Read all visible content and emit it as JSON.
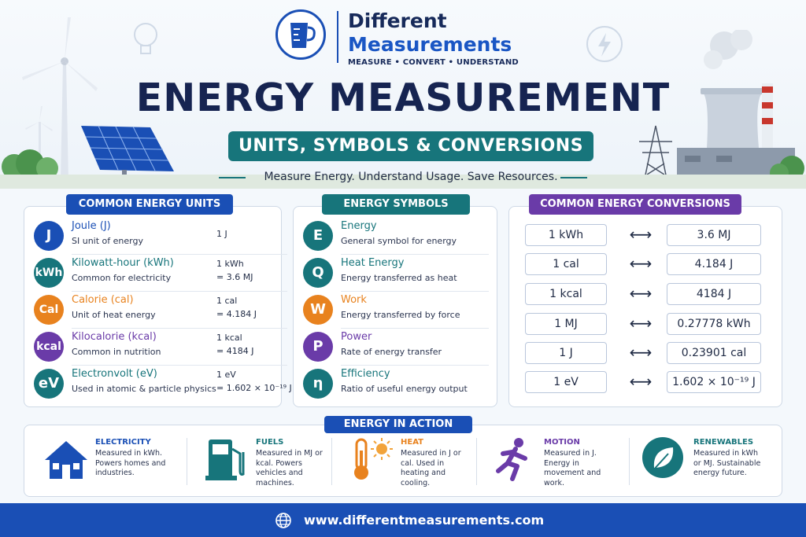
{
  "brand": {
    "line1": "Different",
    "line2": "Measurements",
    "tagline": "MEASURE • CONVERT • UNDERSTAND"
  },
  "header": {
    "title": "ENERGY MEASUREMENT",
    "subtitle": "UNITS, SYMBOLS & CONVERSIONS",
    "tagline": "Measure Energy. Understand Usage. Save Resources."
  },
  "units": {
    "title": "COMMON ENERGY UNITS",
    "items": [
      {
        "symbol": "J",
        "name": "Joule (J)",
        "desc": "SI unit of energy",
        "v1": "1 J",
        "v2": "",
        "color": "#1a4fb5"
      },
      {
        "symbol": "kWh",
        "name": "Kilowatt-hour (kWh)",
        "desc": "Common for electricity",
        "v1": "1 kWh",
        "v2": "= 3.6 MJ",
        "color": "#17757b"
      },
      {
        "symbol": "Cal",
        "name": "Calorie (cal)",
        "desc": "Unit of heat energy",
        "v1": "1 cal",
        "v2": "= 4.184 J",
        "color": "#e8821e"
      },
      {
        "symbol": "kcal",
        "name": "Kilocalorie (kcal)",
        "desc": "Common in nutrition",
        "v1": "1 kcal",
        "v2": "= 4184 J",
        "color": "#6a3ba8"
      },
      {
        "symbol": "eV",
        "name": "Electronvolt (eV)",
        "desc": "Used in atomic & particle physics",
        "v1": "1 eV",
        "v2": "= 1.602 × 10⁻¹⁹ J",
        "color": "#17757b"
      }
    ]
  },
  "symbols": {
    "title": "ENERGY SYMBOLS",
    "items": [
      {
        "symbol": "E",
        "name": "Energy",
        "desc": "General symbol for energy",
        "color": "#17757b"
      },
      {
        "symbol": "Q",
        "name": "Heat Energy",
        "desc": "Energy transferred as heat",
        "color": "#17757b"
      },
      {
        "symbol": "W",
        "name": "Work",
        "desc": "Energy transferred by force",
        "color": "#e8821e"
      },
      {
        "symbol": "P",
        "name": "Power",
        "desc": "Rate of energy transfer",
        "color": "#6a3ba8"
      },
      {
        "symbol": "η",
        "name": "Efficiency",
        "desc": "Ratio of useful energy output",
        "color": "#17757b"
      }
    ]
  },
  "conversions": {
    "title": "COMMON ENERGY CONVERSIONS",
    "arrow": "⟷",
    "items": [
      {
        "from": "1 kWh",
        "to": "3.6 MJ"
      },
      {
        "from": "1 cal",
        "to": "4.184 J"
      },
      {
        "from": "1 kcal",
        "to": "4184 J"
      },
      {
        "from": "1 MJ",
        "to": "0.27778 kWh"
      },
      {
        "from": "1 J",
        "to": "0.23901 cal"
      },
      {
        "from": "1 eV",
        "to": "1.602 × 10⁻¹⁹ J"
      }
    ]
  },
  "action": {
    "title": "ENERGY IN ACTION",
    "items": [
      {
        "name": "ELECTRICITY",
        "desc": "Measured in kWh. Powers homes and industries.",
        "icon": "house-icon",
        "color": "#1a4fb5"
      },
      {
        "name": "FUELS",
        "desc": "Measured in MJ or kcal. Powers vehicles and machines.",
        "icon": "fuel-pump-icon",
        "color": "#17757b"
      },
      {
        "name": "HEAT",
        "desc": "Measured in J or cal. Used in heating and cooling.",
        "icon": "thermometer-sun-icon",
        "color": "#e8821e"
      },
      {
        "name": "MOTION",
        "desc": "Measured in J. Energy in movement and work.",
        "icon": "running-person-icon",
        "color": "#6a3ba8"
      },
      {
        "name": "RENEWABLES",
        "desc": "Measured in kWh or MJ. Sustainable energy future.",
        "icon": "leaf-icon",
        "color": "#17757b"
      }
    ]
  },
  "footer": {
    "url": "www.differentmeasurements.com"
  },
  "colors": {
    "navy": "#162451",
    "blue": "#1a4fb5",
    "teal": "#17757b",
    "orange": "#e8821e",
    "purple": "#6a3ba8"
  }
}
